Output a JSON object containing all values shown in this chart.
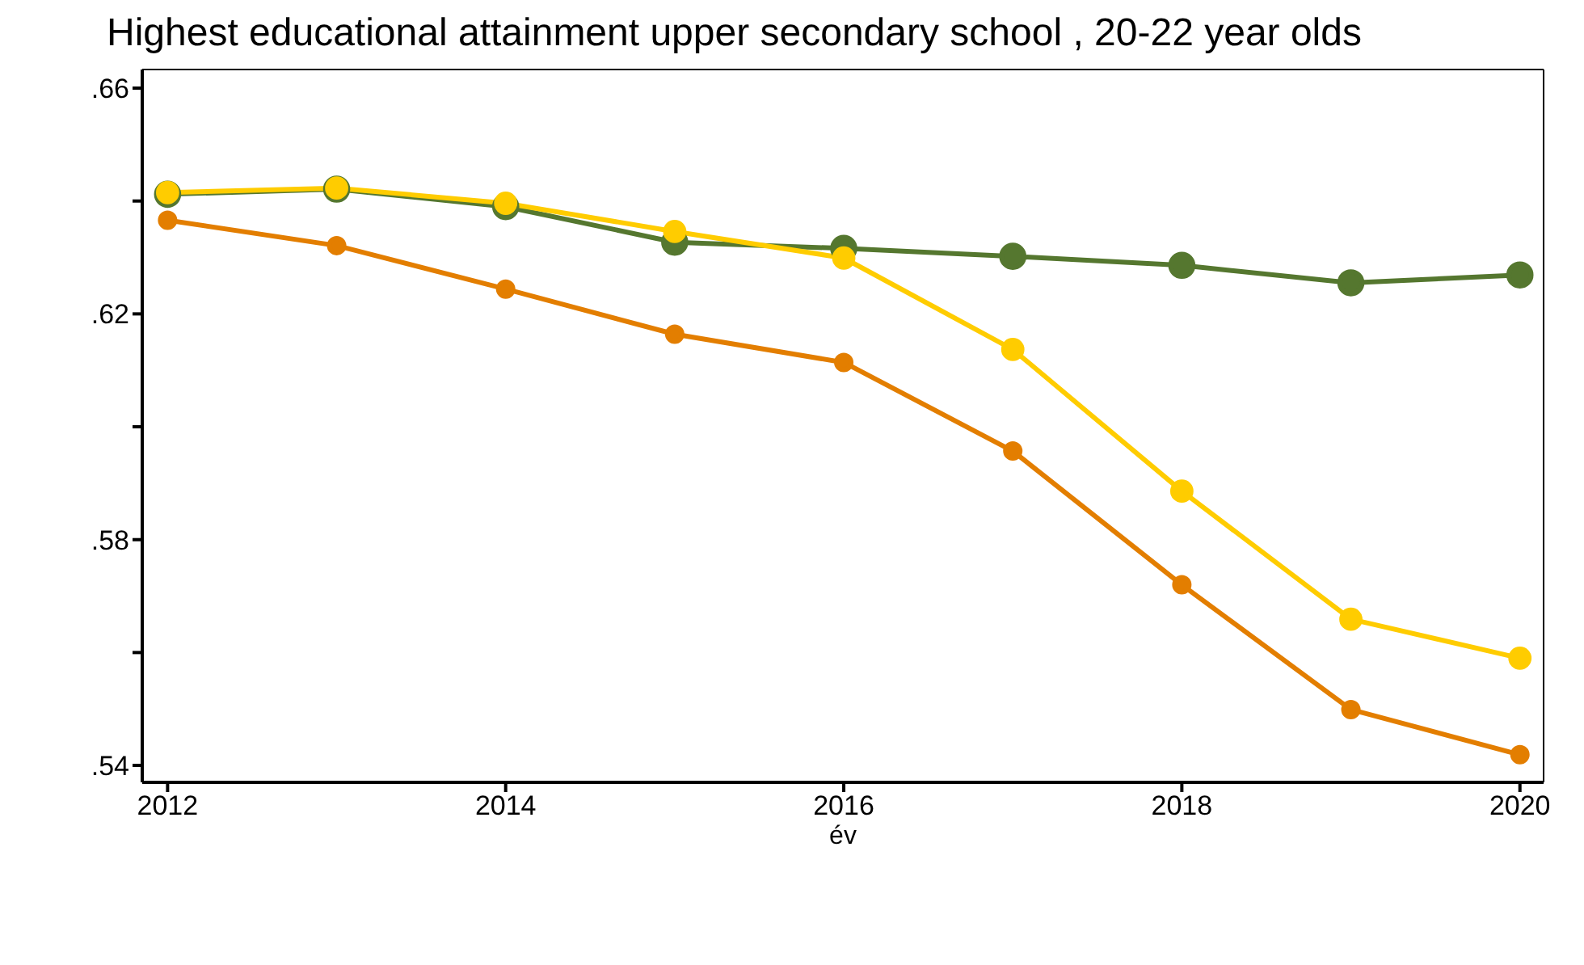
{
  "chart_data": {
    "type": "line",
    "title": "Highest educational attainment upper secondary school , 20-22  year olds",
    "xlabel": "év",
    "x": [
      2012,
      2013,
      2014,
      2015,
      2016,
      2017,
      2018,
      2019,
      2020
    ],
    "xlim": [
      2011.85,
      2020.14
    ],
    "xticks": [
      2012,
      2014,
      2016,
      2018,
      2020
    ],
    "ylim": [
      0.537,
      0.6633
    ],
    "yticks": [
      {
        "value": 0.54,
        "label": ".54"
      },
      {
        "value": 0.56,
        "label": null
      },
      {
        "value": 0.58,
        "label": ".58"
      },
      {
        "value": 0.6,
        "label": null
      },
      {
        "value": 0.62,
        "label": ".62"
      },
      {
        "value": 0.64,
        "label": null
      },
      {
        "value": 0.66,
        "label": ".66"
      }
    ],
    "grid": false,
    "legend": false,
    "marker": "circle",
    "line_style": "solid",
    "series": [
      {
        "color": "#55772f",
        "values": [
          0.6412,
          0.6421,
          0.639,
          0.6327,
          0.6316,
          0.6302,
          0.6286,
          0.6255,
          0.6269
        ]
      },
      {
        "color": "#ffcc00",
        "values": [
          0.6415,
          0.6423,
          0.6396,
          0.6346,
          0.6299,
          0.6137,
          0.5886,
          0.5659,
          0.559
        ]
      },
      {
        "color": "#e37e00",
        "values": [
          0.6366,
          0.6321,
          0.6244,
          0.6164,
          0.6114,
          0.5957,
          0.572,
          0.5499,
          0.5419
        ]
      }
    ]
  }
}
